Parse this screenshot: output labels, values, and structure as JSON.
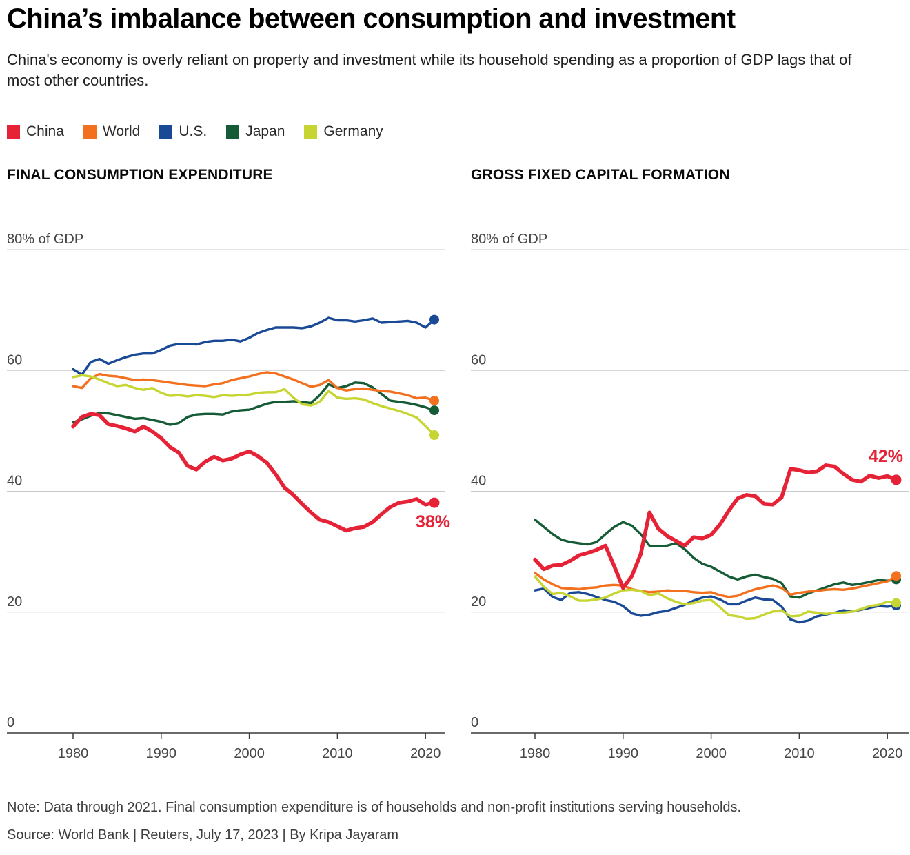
{
  "header": {
    "title": "China’s imbalance between consumption and investment",
    "subtitle": "China's economy is overly reliant on property and investment while its household spending as a proportion of GDP lags that of most other countries."
  },
  "legend": [
    {
      "label": "China",
      "color": "#e62237"
    },
    {
      "label": "World",
      "color": "#f3701e"
    },
    {
      "label": "U.S.",
      "color": "#1a4a96"
    },
    {
      "label": "Japan",
      "color": "#155c36"
    },
    {
      "label": "Germany",
      "color": "#c6d531"
    }
  ],
  "chart_data": [
    {
      "type": "line",
      "title": "FINAL CONSUMPTION EXPENDITURE",
      "unit_label": "80% of GDP",
      "ylim": [
        0,
        80
      ],
      "yticks": [
        0,
        20,
        40,
        60,
        80
      ],
      "xticks": [
        1980,
        1990,
        2000,
        2010,
        2020
      ],
      "grid": "horizontal",
      "years": [
        1980,
        1981,
        1982,
        1983,
        1984,
        1985,
        1986,
        1987,
        1988,
        1989,
        1990,
        1991,
        1992,
        1993,
        1994,
        1995,
        1996,
        1997,
        1998,
        1999,
        2000,
        2001,
        2002,
        2003,
        2004,
        2005,
        2006,
        2007,
        2008,
        2009,
        2010,
        2011,
        2012,
        2013,
        2014,
        2015,
        2016,
        2017,
        2018,
        2019,
        2020,
        2021
      ],
      "series": [
        {
          "name": "U.S.",
          "color": "#1a4a96",
          "values": [
            60.2,
            59.3,
            61.4,
            61.9,
            61.1,
            61.7,
            62.2,
            62.6,
            62.8,
            62.8,
            63.4,
            64.1,
            64.4,
            64.4,
            64.3,
            64.7,
            64.9,
            64.9,
            65.1,
            64.8,
            65.4,
            66.2,
            66.7,
            67.1,
            67.1,
            67.1,
            67.0,
            67.3,
            67.9,
            68.7,
            68.3,
            68.3,
            68.1,
            68.3,
            68.6,
            67.9,
            68.0,
            68.1,
            68.2,
            67.9,
            67.1,
            68.4
          ]
        },
        {
          "name": "Japan",
          "color": "#155c36",
          "values": [
            51.4,
            51.9,
            52.5,
            53.0,
            52.9,
            52.6,
            52.3,
            52.0,
            52.1,
            51.8,
            51.5,
            51.0,
            51.3,
            52.3,
            52.7,
            52.8,
            52.8,
            52.7,
            53.2,
            53.4,
            53.5,
            54.0,
            54.5,
            54.8,
            54.8,
            54.9,
            54.8,
            54.6,
            55.9,
            57.7,
            57.1,
            57.4,
            58.0,
            57.9,
            57.2,
            56.1,
            55.0,
            54.8,
            54.6,
            54.3,
            53.9,
            53.4
          ]
        },
        {
          "name": "World",
          "color": "#f3701e",
          "values": [
            57.4,
            57.1,
            58.7,
            59.4,
            59.1,
            59.0,
            58.7,
            58.4,
            58.5,
            58.4,
            58.2,
            58.0,
            57.8,
            57.6,
            57.5,
            57.4,
            57.7,
            57.9,
            58.4,
            58.7,
            59.0,
            59.4,
            59.7,
            59.5,
            59.0,
            58.5,
            57.9,
            57.3,
            57.6,
            58.4,
            57.1,
            56.7,
            56.9,
            57.0,
            56.8,
            56.6,
            56.5,
            56.2,
            55.9,
            55.4,
            55.5,
            55.0
          ]
        },
        {
          "name": "Germany",
          "color": "#c6d531",
          "values": [
            58.9,
            59.2,
            59.0,
            58.5,
            57.9,
            57.4,
            57.6,
            57.1,
            56.8,
            57.1,
            56.3,
            55.8,
            55.9,
            55.7,
            55.9,
            55.8,
            55.6,
            55.9,
            55.8,
            55.9,
            56.0,
            56.3,
            56.4,
            56.4,
            56.9,
            55.5,
            54.4,
            54.2,
            54.8,
            56.6,
            55.5,
            55.3,
            55.4,
            55.2,
            54.6,
            54.1,
            53.7,
            53.3,
            52.8,
            52.2,
            50.8,
            49.3
          ]
        },
        {
          "name": "China",
          "color": "#e62237",
          "emphasis": true,
          "end_label": "38%",
          "end_label_side": "below",
          "values": [
            50.7,
            52.3,
            52.8,
            52.6,
            51.1,
            50.8,
            50.4,
            49.9,
            50.7,
            49.9,
            48.8,
            47.3,
            46.4,
            44.2,
            43.6,
            44.9,
            45.7,
            45.1,
            45.4,
            46.1,
            46.6,
            45.8,
            44.7,
            42.8,
            40.6,
            39.4,
            37.9,
            36.5,
            35.3,
            34.9,
            34.2,
            33.5,
            33.9,
            34.1,
            34.9,
            36.2,
            37.4,
            38.1,
            38.3,
            38.7,
            37.8,
            38.1
          ]
        }
      ]
    },
    {
      "type": "line",
      "title": "GROSS FIXED CAPITAL FORMATION",
      "unit_label": "80% of GDP",
      "ylim": [
        0,
        80
      ],
      "yticks": [
        0,
        20,
        40,
        60,
        80
      ],
      "xticks": [
        1980,
        1990,
        2000,
        2010,
        2020
      ],
      "grid": "horizontal",
      "years": [
        1980,
        1981,
        1982,
        1983,
        1984,
        1985,
        1986,
        1987,
        1988,
        1989,
        1990,
        1991,
        1992,
        1993,
        1994,
        1995,
        1996,
        1997,
        1998,
        1999,
        2000,
        2001,
        2002,
        2003,
        2004,
        2005,
        2006,
        2007,
        2008,
        2009,
        2010,
        2011,
        2012,
        2013,
        2014,
        2015,
        2016,
        2017,
        2018,
        2019,
        2020,
        2021
      ],
      "series": [
        {
          "name": "U.S.",
          "color": "#1a4a96",
          "values": [
            23.6,
            23.9,
            22.5,
            22.0,
            23.2,
            23.3,
            23.0,
            22.5,
            22.0,
            21.7,
            21.0,
            19.8,
            19.4,
            19.6,
            20.0,
            20.2,
            20.7,
            21.2,
            21.9,
            22.4,
            22.6,
            22.1,
            21.3,
            21.3,
            21.9,
            22.4,
            22.1,
            22.0,
            20.9,
            18.8,
            18.3,
            18.6,
            19.3,
            19.6,
            19.9,
            20.3,
            20.1,
            20.4,
            20.7,
            21.0,
            20.9,
            21.1
          ]
        },
        {
          "name": "Japan",
          "color": "#155c36",
          "values": [
            35.3,
            34.1,
            32.9,
            32.0,
            31.6,
            31.4,
            31.2,
            31.6,
            32.9,
            34.1,
            34.9,
            34.3,
            32.9,
            31.0,
            30.9,
            31.0,
            31.4,
            30.4,
            29.0,
            28.0,
            27.5,
            26.7,
            25.9,
            25.4,
            25.9,
            26.2,
            25.8,
            25.5,
            24.8,
            22.6,
            22.4,
            23.1,
            23.6,
            24.1,
            24.6,
            24.9,
            24.5,
            24.7,
            25.0,
            25.3,
            25.2,
            25.4
          ]
        },
        {
          "name": "World",
          "color": "#f3701e",
          "values": [
            26.5,
            25.4,
            24.6,
            24.0,
            23.9,
            23.8,
            24.0,
            24.1,
            24.4,
            24.5,
            24.4,
            23.8,
            23.5,
            23.3,
            23.4,
            23.6,
            23.5,
            23.5,
            23.3,
            23.2,
            23.3,
            22.8,
            22.5,
            22.7,
            23.3,
            23.8,
            24.1,
            24.4,
            24.0,
            22.9,
            23.2,
            23.4,
            23.5,
            23.7,
            23.8,
            23.7,
            23.9,
            24.2,
            24.5,
            24.8,
            25.1,
            26.0
          ]
        },
        {
          "name": "Germany",
          "color": "#c6d531",
          "values": [
            25.9,
            24.2,
            23.0,
            23.2,
            22.6,
            21.9,
            21.9,
            22.1,
            22.4,
            23.1,
            23.6,
            23.7,
            23.5,
            22.8,
            23.1,
            22.3,
            21.7,
            21.3,
            21.5,
            21.9,
            22.0,
            20.8,
            19.5,
            19.3,
            18.9,
            19.0,
            19.6,
            20.1,
            20.3,
            19.3,
            19.4,
            20.1,
            19.9,
            19.7,
            19.9,
            19.9,
            20.1,
            20.5,
            21.0,
            21.2,
            21.7,
            21.5
          ]
        },
        {
          "name": "China",
          "color": "#e62237",
          "emphasis": true,
          "end_label": "42%",
          "end_label_side": "above",
          "values": [
            28.7,
            27.1,
            27.7,
            27.8,
            28.5,
            29.4,
            29.8,
            30.3,
            31.0,
            27.6,
            24.0,
            26.0,
            29.6,
            36.5,
            33.8,
            32.6,
            31.8,
            31.0,
            32.4,
            32.2,
            32.8,
            34.5,
            36.8,
            38.8,
            39.4,
            39.2,
            37.9,
            37.8,
            39.0,
            43.7,
            43.5,
            43.1,
            43.3,
            44.3,
            44.1,
            42.9,
            41.9,
            41.6,
            42.6,
            42.2,
            42.5,
            41.9
          ]
        }
      ]
    }
  ],
  "footer": {
    "note": "Note: Data through 2021. Final consumption expenditure is of households and non-profit institutions serving households.",
    "source": "Source: World Bank | Reuters, July 17, 2023 | By Kripa Jayaram"
  }
}
